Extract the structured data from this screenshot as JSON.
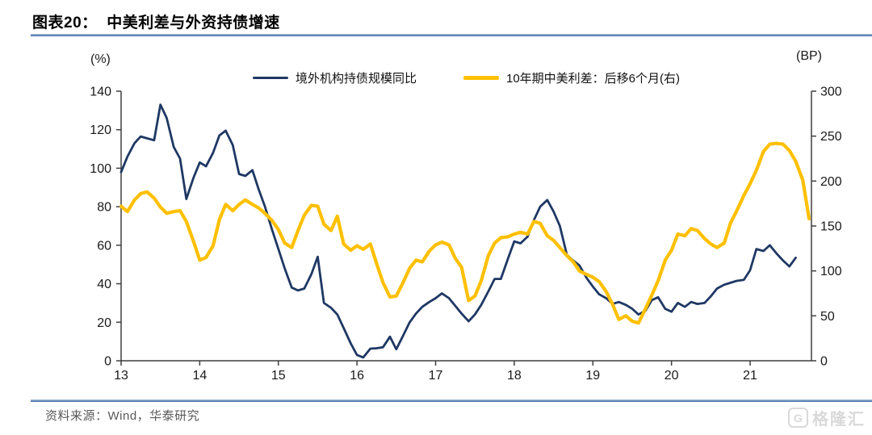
{
  "header": {
    "title": "图表20：  中美利差与外资持债增速"
  },
  "legend": [
    {
      "label": "境外机构持债规模同比",
      "color": "#1F3864"
    },
    {
      "label": "10年期中美利差：后移6个月(右)",
      "color": "#FFC000"
    }
  ],
  "footer": {
    "source": "资料来源：Wind，华泰研究"
  },
  "watermark": {
    "icon_letter": "G",
    "text": "格隆汇"
  },
  "colors": {
    "navy": "#1F3864",
    "gold": "#FFC000",
    "axis": "#3f3f3f",
    "tick_label": "#1a1a1a",
    "divider_blue": "#3c6ba5"
  },
  "chart_data": {
    "type": "line",
    "title": "中美利差与外资持债增速",
    "grid": false,
    "legend_position": "top",
    "x_axis": {
      "label": "year",
      "min": 13,
      "max": 21.78,
      "ticks": [
        13,
        14,
        15,
        16,
        17,
        18,
        19,
        20,
        21
      ]
    },
    "left_axis": {
      "unit": "(%)",
      "min": 0,
      "max": 140,
      "ticks": [
        0,
        20,
        40,
        60,
        80,
        100,
        120,
        140
      ]
    },
    "right_axis": {
      "unit": "(BP)",
      "min": 0,
      "max": 300,
      "ticks": [
        0,
        50,
        100,
        150,
        200,
        250,
        300
      ]
    },
    "series": [
      {
        "name": "境外机构持债规模同比",
        "axis": "left",
        "color": "#1F3864",
        "stroke_width": 2.8,
        "points": [
          [
            13.0,
            98
          ],
          [
            13.08,
            106
          ],
          [
            13.17,
            113
          ],
          [
            13.25,
            116.5
          ],
          [
            13.33,
            115.5
          ],
          [
            13.42,
            114.5
          ],
          [
            13.5,
            133
          ],
          [
            13.58,
            126
          ],
          [
            13.67,
            111
          ],
          [
            13.75,
            105
          ],
          [
            13.83,
            84
          ],
          [
            13.92,
            95
          ],
          [
            14.0,
            103
          ],
          [
            14.08,
            101
          ],
          [
            14.17,
            108
          ],
          [
            14.25,
            117
          ],
          [
            14.33,
            119.5
          ],
          [
            14.42,
            112
          ],
          [
            14.5,
            97
          ],
          [
            14.58,
            96
          ],
          [
            14.67,
            99
          ],
          [
            14.75,
            89
          ],
          [
            14.83,
            80
          ],
          [
            14.92,
            68
          ],
          [
            15.0,
            58
          ],
          [
            15.08,
            48
          ],
          [
            15.17,
            38
          ],
          [
            15.25,
            36.5
          ],
          [
            15.33,
            37.5
          ],
          [
            15.42,
            45
          ],
          [
            15.5,
            54
          ],
          [
            15.58,
            30
          ],
          [
            15.67,
            27.5
          ],
          [
            15.75,
            24
          ],
          [
            15.83,
            17
          ],
          [
            15.92,
            9
          ],
          [
            16.0,
            3
          ],
          [
            16.08,
            1.7
          ],
          [
            16.17,
            6.3
          ],
          [
            16.25,
            6.5
          ],
          [
            16.33,
            7
          ],
          [
            16.42,
            12.5
          ],
          [
            16.5,
            6
          ],
          [
            16.58,
            12.5
          ],
          [
            16.67,
            20
          ],
          [
            16.75,
            24.5
          ],
          [
            16.83,
            28
          ],
          [
            16.92,
            30.5
          ],
          [
            17.0,
            32.5
          ],
          [
            17.08,
            35
          ],
          [
            17.17,
            32.5
          ],
          [
            17.25,
            28.5
          ],
          [
            17.33,
            24.5
          ],
          [
            17.42,
            20.5
          ],
          [
            17.5,
            24
          ],
          [
            17.58,
            29
          ],
          [
            17.67,
            36
          ],
          [
            17.75,
            42.5
          ],
          [
            17.83,
            42.5
          ],
          [
            17.92,
            53
          ],
          [
            18.0,
            62
          ],
          [
            18.08,
            61
          ],
          [
            18.17,
            64.5
          ],
          [
            18.25,
            73
          ],
          [
            18.33,
            80
          ],
          [
            18.42,
            83.5
          ],
          [
            18.5,
            77.5
          ],
          [
            18.58,
            70
          ],
          [
            18.67,
            55
          ],
          [
            18.75,
            52
          ],
          [
            18.83,
            49.5
          ],
          [
            18.92,
            43
          ],
          [
            19.0,
            38.5
          ],
          [
            19.08,
            34.5
          ],
          [
            19.17,
            32.5
          ],
          [
            19.25,
            29.5
          ],
          [
            19.33,
            30.5
          ],
          [
            19.42,
            29
          ],
          [
            19.5,
            27
          ],
          [
            19.58,
            24
          ],
          [
            19.67,
            26
          ],
          [
            19.75,
            31.5
          ],
          [
            19.83,
            33
          ],
          [
            19.92,
            27
          ],
          [
            20.0,
            25.5
          ],
          [
            20.08,
            30
          ],
          [
            20.17,
            28
          ],
          [
            20.25,
            30.5
          ],
          [
            20.33,
            29.5
          ],
          [
            20.42,
            30
          ],
          [
            20.5,
            33.5
          ],
          [
            20.58,
            37.5
          ],
          [
            20.67,
            39.5
          ],
          [
            20.75,
            40.5
          ],
          [
            20.83,
            41.5
          ],
          [
            20.92,
            42
          ],
          [
            21.0,
            47
          ],
          [
            21.08,
            58
          ],
          [
            21.17,
            57
          ],
          [
            21.25,
            60
          ],
          [
            21.33,
            56
          ],
          [
            21.42,
            52
          ],
          [
            21.5,
            49
          ],
          [
            21.58,
            53.5
          ]
        ]
      },
      {
        "name": "10年期中美利差：后移6个月(右)",
        "axis": "right",
        "color": "#FFC000",
        "stroke_width": 4.2,
        "points": [
          [
            13.0,
            172
          ],
          [
            13.08,
            166
          ],
          [
            13.17,
            179
          ],
          [
            13.25,
            186
          ],
          [
            13.33,
            188
          ],
          [
            13.42,
            181
          ],
          [
            13.5,
            171
          ],
          [
            13.58,
            164
          ],
          [
            13.67,
            166
          ],
          [
            13.75,
            167
          ],
          [
            13.83,
            155
          ],
          [
            13.92,
            133
          ],
          [
            14.0,
            112
          ],
          [
            14.08,
            115
          ],
          [
            14.17,
            128
          ],
          [
            14.25,
            157
          ],
          [
            14.33,
            174
          ],
          [
            14.42,
            167
          ],
          [
            14.5,
            174
          ],
          [
            14.58,
            179
          ],
          [
            14.67,
            174
          ],
          [
            14.75,
            170
          ],
          [
            14.83,
            164
          ],
          [
            14.92,
            156
          ],
          [
            15.0,
            146
          ],
          [
            15.08,
            131
          ],
          [
            15.17,
            126
          ],
          [
            15.25,
            145
          ],
          [
            15.33,
            162
          ],
          [
            15.42,
            173
          ],
          [
            15.5,
            172
          ],
          [
            15.58,
            152
          ],
          [
            15.67,
            145
          ],
          [
            15.75,
            161
          ],
          [
            15.83,
            130
          ],
          [
            15.92,
            123
          ],
          [
            16.0,
            128
          ],
          [
            16.08,
            124
          ],
          [
            16.17,
            130
          ],
          [
            16.25,
            108
          ],
          [
            16.33,
            87
          ],
          [
            16.42,
            71
          ],
          [
            16.5,
            72
          ],
          [
            16.58,
            86
          ],
          [
            16.67,
            103
          ],
          [
            16.75,
            112
          ],
          [
            16.83,
            110
          ],
          [
            16.92,
            122
          ],
          [
            17.0,
            129
          ],
          [
            17.08,
            132
          ],
          [
            17.17,
            129
          ],
          [
            17.25,
            114
          ],
          [
            17.33,
            104
          ],
          [
            17.42,
            67
          ],
          [
            17.5,
            72
          ],
          [
            17.58,
            89
          ],
          [
            17.67,
            117
          ],
          [
            17.75,
            131
          ],
          [
            17.83,
            137
          ],
          [
            17.92,
            138
          ],
          [
            18.0,
            141
          ],
          [
            18.08,
            143
          ],
          [
            18.17,
            141
          ],
          [
            18.25,
            155
          ],
          [
            18.33,
            153
          ],
          [
            18.42,
            139
          ],
          [
            18.5,
            134
          ],
          [
            18.58,
            126
          ],
          [
            18.67,
            117
          ],
          [
            18.75,
            110
          ],
          [
            18.83,
            100
          ],
          [
            18.92,
            96
          ],
          [
            19.0,
            93
          ],
          [
            19.08,
            88
          ],
          [
            19.17,
            77
          ],
          [
            19.25,
            63
          ],
          [
            19.33,
            46
          ],
          [
            19.42,
            50
          ],
          [
            19.5,
            44
          ],
          [
            19.58,
            42
          ],
          [
            19.67,
            58
          ],
          [
            19.75,
            73
          ],
          [
            19.83,
            89
          ],
          [
            19.92,
            112
          ],
          [
            20.0,
            123
          ],
          [
            20.08,
            141
          ],
          [
            20.17,
            139
          ],
          [
            20.25,
            147
          ],
          [
            20.33,
            145
          ],
          [
            20.42,
            136
          ],
          [
            20.5,
            130
          ],
          [
            20.58,
            126
          ],
          [
            20.67,
            131
          ],
          [
            20.75,
            153
          ],
          [
            20.83,
            167
          ],
          [
            20.92,
            184
          ],
          [
            21.0,
            197
          ],
          [
            21.08,
            212
          ],
          [
            21.17,
            233
          ],
          [
            21.25,
            241
          ],
          [
            21.33,
            242
          ],
          [
            21.42,
            241
          ],
          [
            21.5,
            234
          ],
          [
            21.58,
            222
          ],
          [
            21.67,
            201
          ],
          [
            21.75,
            158
          ]
        ]
      }
    ]
  }
}
